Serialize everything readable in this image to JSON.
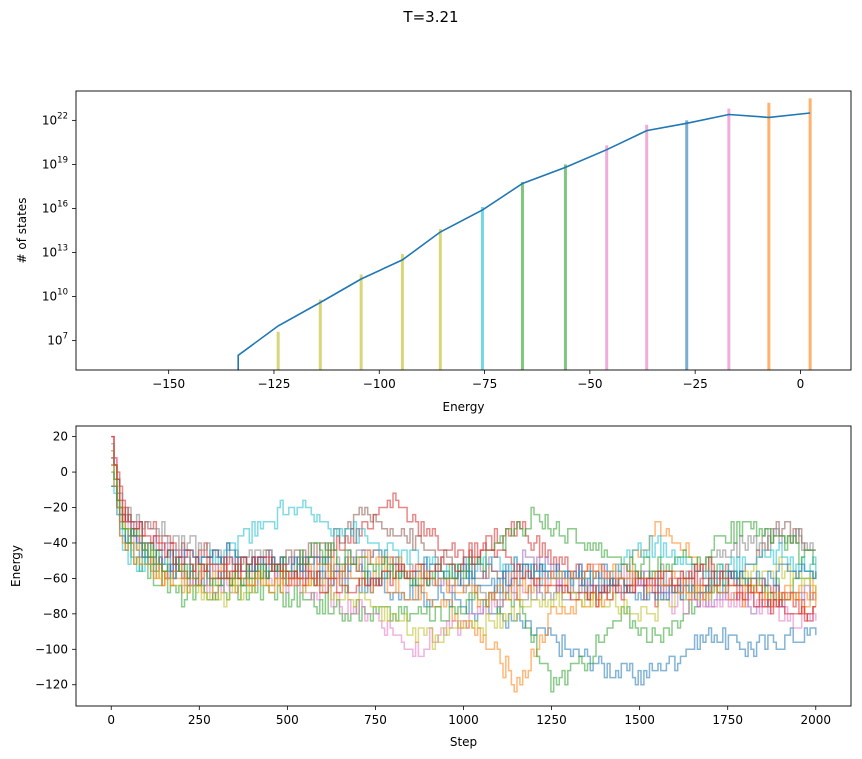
{
  "figure": {
    "suptitle": "T=3.21"
  },
  "chart_data": [
    {
      "type": "line",
      "xlabel": "Energy",
      "ylabel": "# of states",
      "xlim": [
        -172,
        12
      ],
      "ylim_log10": [
        5,
        24
      ],
      "y_scale": "log",
      "xticks": [
        -150,
        -125,
        -100,
        -75,
        -50,
        -25,
        0
      ],
      "ytick_exponents": [
        7,
        10,
        13,
        16,
        19,
        22
      ],
      "ytick_base": "10",
      "grid": false,
      "dos_curve": {
        "color": "#1f77b4",
        "x": [
          -133.5,
          -133.5,
          -124,
          -114,
          -104.3,
          -94.5,
          -85.5,
          -75.5,
          -66,
          -55.8,
          -46,
          -36.5,
          -27,
          -17,
          -7.5,
          2.3
        ],
        "log10_y": [
          5.0,
          6.0,
          8.0,
          9.6,
          11.2,
          12.5,
          14.4,
          15.9,
          17.7,
          18.8,
          20.0,
          21.3,
          21.8,
          22.4,
          22.2,
          22.5
        ]
      },
      "histogram_bars": [
        {
          "x": -124.0,
          "log10_top": 7.6,
          "color": "#bcbd22"
        },
        {
          "x": -114.0,
          "log10_top": 9.8,
          "color": "#bcbd22"
        },
        {
          "x": -104.3,
          "log10_top": 11.5,
          "color": "#bcbd22"
        },
        {
          "x": -94.5,
          "log10_top": 12.9,
          "color": "#bcbd22"
        },
        {
          "x": -85.5,
          "log10_top": 14.6,
          "color": "#bcbd22"
        },
        {
          "x": -75.5,
          "log10_top": 16.1,
          "color": "#17becf"
        },
        {
          "x": -66.0,
          "log10_top": 17.8,
          "color": "#2ca02c"
        },
        {
          "x": -55.8,
          "log10_top": 19.0,
          "color": "#2ca02c"
        },
        {
          "x": -46.0,
          "log10_top": 20.3,
          "color": "#e377c2"
        },
        {
          "x": -36.5,
          "log10_top": 21.7,
          "color": "#e377c2"
        },
        {
          "x": -27.0,
          "log10_top": 22.0,
          "color": "#1f77b4"
        },
        {
          "x": -17.0,
          "log10_top": 22.8,
          "color": "#e377c2"
        },
        {
          "x": -7.5,
          "log10_top": 23.2,
          "color": "#ff7f0e"
        },
        {
          "x": 2.3,
          "log10_top": 23.5,
          "color": "#ff7f0e"
        }
      ]
    },
    {
      "type": "line",
      "xlabel": "Step",
      "ylabel": "Energy",
      "xlim": [
        -100,
        2100
      ],
      "ylim": [
        -132,
        26
      ],
      "xticks": [
        0,
        250,
        500,
        750,
        1000,
        1250,
        1500,
        1750,
        2000
      ],
      "yticks": [
        20,
        0,
        -20,
        -40,
        -60,
        -80,
        -100,
        -120
      ],
      "grid": false,
      "steps": 2000,
      "series": [
        {
          "color": "#1f77b4",
          "x": [
            0,
            40,
            150,
            300,
            500,
            700,
            900,
            1100,
            1200,
            1300,
            1400,
            1500,
            1600,
            1700,
            1800,
            1900,
            2000
          ],
          "values": [
            5,
            -35,
            -55,
            -60,
            -58,
            -62,
            -70,
            -80,
            -90,
            -100,
            -110,
            -115,
            -105,
            -90,
            -100,
            -95,
            -90
          ]
        },
        {
          "color": "#ff7f0e",
          "x": [
            0,
            30,
            150,
            300,
            500,
            700,
            900,
            1000,
            1100,
            1150,
            1180,
            1250,
            1400,
            1550,
            1700,
            1850,
            2000
          ],
          "values": [
            8,
            -30,
            -60,
            -65,
            -55,
            -60,
            -70,
            -85,
            -105,
            -120,
            -110,
            -80,
            -70,
            -30,
            -55,
            -70,
            -65
          ]
        },
        {
          "color": "#2ca02c",
          "x": [
            0,
            40,
            200,
            400,
            600,
            800,
            950,
            1050,
            1150,
            1250,
            1350,
            1450,
            1550,
            1650,
            1750,
            1850,
            2000
          ],
          "values": [
            -5,
            -45,
            -70,
            -65,
            -75,
            -80,
            -80,
            -70,
            -75,
            -120,
            -105,
            -80,
            -95,
            -75,
            -50,
            -70,
            -60
          ]
        },
        {
          "color": "#d62728",
          "x": [
            0,
            30,
            150,
            300,
            500,
            650,
            750,
            800,
            900,
            1000,
            1150,
            1250,
            1400,
            1550,
            1700,
            1850,
            2000
          ],
          "values": [
            20,
            -20,
            -40,
            -50,
            -60,
            -40,
            -25,
            -15,
            -35,
            -50,
            -30,
            -50,
            -60,
            -70,
            -55,
            -65,
            -80
          ]
        },
        {
          "color": "#9467bd",
          "x": [
            0,
            30,
            150,
            300,
            450,
            600,
            750,
            900,
            1050,
            1200,
            1350,
            1500,
            1650,
            1800,
            1900,
            2000
          ],
          "values": [
            10,
            -25,
            -45,
            -55,
            -50,
            -60,
            -45,
            -65,
            -55,
            -50,
            -65,
            -60,
            -70,
            -75,
            -70,
            -65
          ]
        },
        {
          "color": "#8c564b",
          "x": [
            0,
            30,
            150,
            300,
            450,
            600,
            700,
            800,
            900,
            1050,
            1200,
            1350,
            1500,
            1650,
            1800,
            1900,
            2000
          ],
          "values": [
            15,
            -25,
            -55,
            -60,
            -50,
            -45,
            -25,
            -30,
            -45,
            -60,
            -55,
            -70,
            -60,
            -65,
            -55,
            -30,
            -45
          ]
        },
        {
          "color": "#e377c2",
          "x": [
            0,
            30,
            150,
            300,
            450,
            600,
            750,
            850,
            1000,
            1150,
            1300,
            1450,
            1600,
            1750,
            1900,
            2000
          ],
          "values": [
            12,
            -30,
            -55,
            -65,
            -60,
            -70,
            -80,
            -100,
            -85,
            -65,
            -60,
            -55,
            -75,
            -70,
            -80,
            -85
          ]
        },
        {
          "color": "#7f7f7f",
          "x": [
            0,
            30,
            150,
            300,
            450,
            600,
            750,
            900,
            1050,
            1200,
            1350,
            1500,
            1650,
            1800,
            1900,
            2000
          ],
          "values": [
            15,
            -20,
            -35,
            -45,
            -50,
            -55,
            -45,
            -60,
            -65,
            -70,
            -65,
            -60,
            -55,
            -40,
            -35,
            -40
          ]
        },
        {
          "color": "#bcbd22",
          "x": [
            0,
            30,
            150,
            300,
            450,
            600,
            750,
            900,
            1050,
            1200,
            1350,
            1500,
            1650,
            1800,
            1900,
            2000
          ],
          "values": [
            10,
            -30,
            -60,
            -70,
            -60,
            -65,
            -75,
            -95,
            -85,
            -75,
            -70,
            -80,
            -70,
            -60,
            -55,
            -65
          ]
        },
        {
          "color": "#17becf",
          "x": [
            0,
            30,
            150,
            300,
            500,
            650,
            800,
            950,
            1100,
            1250,
            1400,
            1550,
            1700,
            1850,
            1950,
            2000
          ],
          "values": [
            0,
            -45,
            -55,
            -50,
            -20,
            -30,
            -45,
            -55,
            -50,
            -60,
            -55,
            -40,
            -60,
            -45,
            -50,
            -55
          ]
        },
        {
          "color": "#1f77b4",
          "x": [
            0,
            30,
            150,
            300,
            450,
            600,
            750,
            900,
            1050,
            1200,
            1350,
            1500,
            1650,
            1800,
            1950,
            2000
          ],
          "values": [
            -5,
            -35,
            -50,
            -45,
            -55,
            -50,
            -60,
            -55,
            -65,
            -55,
            -60,
            -70,
            -65,
            -60,
            -55,
            -60
          ]
        },
        {
          "color": "#ff7f0e",
          "x": [
            0,
            30,
            150,
            300,
            450,
            600,
            750,
            900,
            1050,
            1200,
            1350,
            1500,
            1650,
            1800,
            1950,
            2000
          ],
          "values": [
            5,
            -40,
            -60,
            -55,
            -65,
            -55,
            -50,
            -60,
            -70,
            -65,
            -55,
            -60,
            -65,
            -70,
            -75,
            -70
          ]
        },
        {
          "color": "#2ca02c",
          "x": [
            0,
            30,
            150,
            300,
            450,
            600,
            750,
            900,
            1050,
            1200,
            1350,
            1500,
            1650,
            1800,
            1950,
            2000
          ],
          "values": [
            0,
            -30,
            -50,
            -60,
            -55,
            -45,
            -55,
            -60,
            -50,
            -25,
            -40,
            -55,
            -50,
            -30,
            -45,
            -50
          ]
        },
        {
          "color": "#d62728",
          "x": [
            0,
            30,
            150,
            300,
            450,
            600,
            750,
            900,
            1050,
            1200,
            1350,
            1500,
            1650,
            1800,
            1950,
            2000
          ],
          "values": [
            15,
            -25,
            -45,
            -55,
            -50,
            -65,
            -60,
            -55,
            -45,
            -60,
            -70,
            -65,
            -55,
            -70,
            -80,
            -75
          ]
        }
      ]
    }
  ]
}
